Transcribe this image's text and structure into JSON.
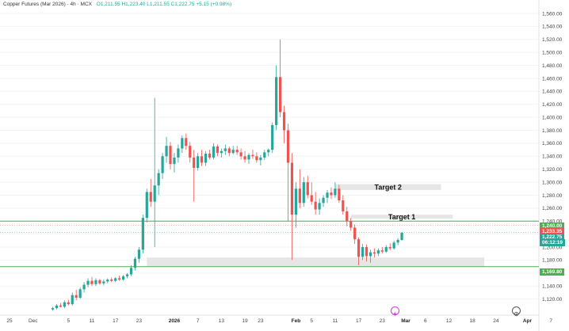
{
  "header": {
    "symbol": "Copper Futures (Mar 2026) · 4h · MCX",
    "quote": "O1,211.55  H1,223.40  L1,211.55  C1,222.75  +5.15 (+0.98%)"
  },
  "colors": {
    "up": "#26a69a",
    "down": "#ef5350",
    "level": "#4caf50",
    "zone": "#e6e6e6",
    "grid": "#f1f3f6"
  },
  "icons": {
    "flash": "lightning-icon",
    "alarm": "alarm-clock-icon"
  },
  "price_tags": [
    {
      "name": "resistance-tag",
      "text": "1,240.00",
      "value": 1240,
      "color": "#4caf50"
    },
    {
      "name": "prev-close-tag",
      "text": "1,233.35",
      "value": 1233.35,
      "color": "#ef5350"
    },
    {
      "name": "last-price-tag",
      "text": "1,222.75",
      "value": 1222.75,
      "color": "#26a69a"
    },
    {
      "name": "countdown-tag",
      "text": "06:12:19",
      "value": 1213.5,
      "color": "#26a69a"
    },
    {
      "name": "support-tag",
      "text": "1,169.80",
      "value": 1169.8,
      "color": "#4caf50"
    }
  ],
  "chart_data": {
    "type": "candlestick",
    "y_axis": {
      "range": [
        1100,
        1570
      ],
      "ticks": [
        1120,
        1140,
        1160,
        1180,
        1200,
        1220,
        1240,
        1260,
        1280,
        1300,
        1320,
        1340,
        1360,
        1380,
        1400,
        1420,
        1440,
        1460,
        1480,
        1500,
        1520,
        1540,
        1560
      ],
      "tick_labels": [
        "1,120.00",
        "1,140.00",
        "1,160.00",
        "1,180.00",
        "1,200.00",
        "1,220.00",
        "1,240.00",
        "1,260.00",
        "1,280.00",
        "1,300.00",
        "1,320.00",
        "1,340.00",
        "1,360.00",
        "1,380.00",
        "1,400.00",
        "1,420.00",
        "1,440.00",
        "1,460.00",
        "1,480.00",
        "1,500.00",
        "1,520.00",
        "1,540.00",
        "1,560.00"
      ]
    },
    "x_axis": {
      "labels": [
        {
          "t": "25",
          "d": -11,
          "bold": false
        },
        {
          "t": "Dec",
          "d": -5,
          "bold": false
        },
        {
          "t": "5",
          "d": 4,
          "bold": false
        },
        {
          "t": "11",
          "d": 10,
          "bold": false
        },
        {
          "t": "17",
          "d": 16,
          "bold": false
        },
        {
          "t": "23",
          "d": 22,
          "bold": false
        },
        {
          "t": "2026",
          "d": 31,
          "bold": true
        },
        {
          "t": "7",
          "d": 37,
          "bold": false
        },
        {
          "t": "13",
          "d": 43,
          "bold": false
        },
        {
          "t": "19",
          "d": 49,
          "bold": false
        },
        {
          "t": "23",
          "d": 53,
          "bold": false
        },
        {
          "t": "Feb",
          "d": 62,
          "bold": true
        },
        {
          "t": "5",
          "d": 66,
          "bold": false
        },
        {
          "t": "11",
          "d": 72,
          "bold": false
        },
        {
          "t": "17",
          "d": 78,
          "bold": false
        },
        {
          "t": "23",
          "d": 84,
          "bold": false
        },
        {
          "t": "Mar",
          "d": 90,
          "bold": true
        },
        {
          "t": "6",
          "d": 95,
          "bold": false
        },
        {
          "t": "12",
          "d": 101,
          "bold": false
        },
        {
          "t": "18",
          "d": 107,
          "bold": false
        },
        {
          "t": "24",
          "d": 113,
          "bold": false
        },
        {
          "t": "Apr",
          "d": 121,
          "bold": true
        },
        {
          "t": "7",
          "d": 127,
          "bold": false
        }
      ]
    },
    "levels": [
      {
        "name": "resistance-line",
        "value": 1240.0
      },
      {
        "name": "support-line",
        "value": 1169.8
      }
    ],
    "dotted_lines": [
      1233.35,
      1222.75
    ],
    "zones": [
      {
        "name": "target-2-zone",
        "label": "Target 2",
        "d_start": 72,
        "d_end": 99,
        "top": 1297,
        "bottom": 1288
      },
      {
        "name": "target-1-zone",
        "label": "Target 1",
        "d_start": 76,
        "d_end": 102,
        "top": 1250,
        "bottom": 1244
      },
      {
        "name": "support-zone",
        "label": "",
        "d_start": 24,
        "d_end": 110,
        "top": 1184,
        "bottom": 1170
      }
    ],
    "series": [
      {
        "d": 0,
        "o": 1104,
        "h": 1108,
        "l": 1102,
        "c": 1106
      },
      {
        "d": 1,
        "o": 1106,
        "h": 1112,
        "l": 1104,
        "c": 1110
      },
      {
        "d": 2,
        "o": 1110,
        "h": 1114,
        "l": 1107,
        "c": 1108
      },
      {
        "d": 3,
        "o": 1108,
        "h": 1118,
        "l": 1106,
        "c": 1115
      },
      {
        "d": 4,
        "o": 1115,
        "h": 1119,
        "l": 1110,
        "c": 1112
      },
      {
        "d": 5,
        "o": 1112,
        "h": 1130,
        "l": 1110,
        "c": 1126
      },
      {
        "d": 6,
        "o": 1126,
        "h": 1134,
        "l": 1118,
        "c": 1122
      },
      {
        "d": 7,
        "o": 1122,
        "h": 1138,
        "l": 1120,
        "c": 1135
      },
      {
        "d": 8,
        "o": 1135,
        "h": 1146,
        "l": 1130,
        "c": 1142
      },
      {
        "d": 9,
        "o": 1142,
        "h": 1152,
        "l": 1138,
        "c": 1148
      },
      {
        "d": 10,
        "o": 1148,
        "h": 1154,
        "l": 1140,
        "c": 1143
      },
      {
        "d": 11,
        "o": 1143,
        "h": 1152,
        "l": 1140,
        "c": 1149
      },
      {
        "d": 12,
        "o": 1149,
        "h": 1151,
        "l": 1142,
        "c": 1144
      },
      {
        "d": 13,
        "o": 1144,
        "h": 1150,
        "l": 1141,
        "c": 1147
      },
      {
        "d": 14,
        "o": 1147,
        "h": 1152,
        "l": 1144,
        "c": 1150
      },
      {
        "d": 15,
        "o": 1150,
        "h": 1153,
        "l": 1146,
        "c": 1148
      },
      {
        "d": 16,
        "o": 1148,
        "h": 1154,
        "l": 1146,
        "c": 1152
      },
      {
        "d": 17,
        "o": 1152,
        "h": 1156,
        "l": 1148,
        "c": 1150
      },
      {
        "d": 18,
        "o": 1150,
        "h": 1157,
        "l": 1148,
        "c": 1155
      },
      {
        "d": 19,
        "o": 1155,
        "h": 1160,
        "l": 1152,
        "c": 1158
      },
      {
        "d": 20,
        "o": 1158,
        "h": 1172,
        "l": 1155,
        "c": 1168
      },
      {
        "d": 21,
        "o": 1168,
        "h": 1185,
        "l": 1164,
        "c": 1182
      },
      {
        "d": 22,
        "o": 1182,
        "h": 1200,
        "l": 1176,
        "c": 1196
      },
      {
        "d": 23,
        "o": 1196,
        "h": 1250,
        "l": 1190,
        "c": 1245
      },
      {
        "d": 24,
        "o": 1245,
        "h": 1290,
        "l": 1238,
        "c": 1285
      },
      {
        "d": 25,
        "o": 1285,
        "h": 1305,
        "l": 1262,
        "c": 1270
      },
      {
        "d": 26,
        "o": 1270,
        "h": 1430,
        "l": 1200,
        "c": 1295
      },
      {
        "d": 27,
        "o": 1295,
        "h": 1320,
        "l": 1280,
        "c": 1314
      },
      {
        "d": 28,
        "o": 1314,
        "h": 1345,
        "l": 1305,
        "c": 1340
      },
      {
        "d": 29,
        "o": 1340,
        "h": 1370,
        "l": 1330,
        "c": 1356
      },
      {
        "d": 30,
        "o": 1356,
        "h": 1362,
        "l": 1320,
        "c": 1328
      },
      {
        "d": 31,
        "o": 1328,
        "h": 1345,
        "l": 1315,
        "c": 1338
      },
      {
        "d": 32,
        "o": 1338,
        "h": 1358,
        "l": 1330,
        "c": 1352
      },
      {
        "d": 33,
        "o": 1352,
        "h": 1372,
        "l": 1345,
        "c": 1368
      },
      {
        "d": 34,
        "o": 1368,
        "h": 1375,
        "l": 1350,
        "c": 1356
      },
      {
        "d": 35,
        "o": 1356,
        "h": 1362,
        "l": 1330,
        "c": 1338
      },
      {
        "d": 36,
        "o": 1338,
        "h": 1350,
        "l": 1270,
        "c": 1322
      },
      {
        "d": 37,
        "o": 1322,
        "h": 1345,
        "l": 1318,
        "c": 1340
      },
      {
        "d": 38,
        "o": 1340,
        "h": 1350,
        "l": 1325,
        "c": 1330
      },
      {
        "d": 39,
        "o": 1330,
        "h": 1348,
        "l": 1325,
        "c": 1344
      },
      {
        "d": 40,
        "o": 1344,
        "h": 1350,
        "l": 1335,
        "c": 1338
      },
      {
        "d": 41,
        "o": 1338,
        "h": 1360,
        "l": 1335,
        "c": 1355
      },
      {
        "d": 42,
        "o": 1355,
        "h": 1358,
        "l": 1340,
        "c": 1345
      },
      {
        "d": 43,
        "o": 1345,
        "h": 1352,
        "l": 1338,
        "c": 1348
      },
      {
        "d": 44,
        "o": 1348,
        "h": 1358,
        "l": 1342,
        "c": 1352
      },
      {
        "d": 45,
        "o": 1352,
        "h": 1355,
        "l": 1340,
        "c": 1345
      },
      {
        "d": 46,
        "o": 1345,
        "h": 1356,
        "l": 1343,
        "c": 1350
      },
      {
        "d": 47,
        "o": 1350,
        "h": 1356,
        "l": 1342,
        "c": 1346
      },
      {
        "d": 48,
        "o": 1346,
        "h": 1352,
        "l": 1335,
        "c": 1340
      },
      {
        "d": 49,
        "o": 1340,
        "h": 1348,
        "l": 1330,
        "c": 1335
      },
      {
        "d": 50,
        "o": 1335,
        "h": 1345,
        "l": 1328,
        "c": 1342
      },
      {
        "d": 51,
        "o": 1342,
        "h": 1350,
        "l": 1336,
        "c": 1340
      },
      {
        "d": 52,
        "o": 1340,
        "h": 1346,
        "l": 1330,
        "c": 1334
      },
      {
        "d": 53,
        "o": 1334,
        "h": 1342,
        "l": 1326,
        "c": 1338
      },
      {
        "d": 54,
        "o": 1338,
        "h": 1350,
        "l": 1334,
        "c": 1346
      },
      {
        "d": 55,
        "o": 1346,
        "h": 1352,
        "l": 1340,
        "c": 1350
      },
      {
        "d": 56,
        "o": 1350,
        "h": 1392,
        "l": 1345,
        "c": 1388
      },
      {
        "d": 57,
        "o": 1388,
        "h": 1480,
        "l": 1380,
        "c": 1462
      },
      {
        "d": 58,
        "o": 1462,
        "h": 1520,
        "l": 1400,
        "c": 1408
      },
      {
        "d": 59,
        "o": 1408,
        "h": 1418,
        "l": 1360,
        "c": 1380
      },
      {
        "d": 60,
        "o": 1380,
        "h": 1390,
        "l": 1240,
        "c": 1330
      },
      {
        "d": 61,
        "o": 1330,
        "h": 1345,
        "l": 1180,
        "c": 1250
      },
      {
        "d": 62,
        "o": 1250,
        "h": 1300,
        "l": 1230,
        "c": 1290
      },
      {
        "d": 63,
        "o": 1290,
        "h": 1320,
        "l": 1260,
        "c": 1268
      },
      {
        "d": 64,
        "o": 1268,
        "h": 1308,
        "l": 1262,
        "c": 1300
      },
      {
        "d": 65,
        "o": 1300,
        "h": 1310,
        "l": 1275,
        "c": 1280
      },
      {
        "d": 66,
        "o": 1280,
        "h": 1300,
        "l": 1265,
        "c": 1270
      },
      {
        "d": 67,
        "o": 1270,
        "h": 1285,
        "l": 1250,
        "c": 1258
      },
      {
        "d": 68,
        "o": 1258,
        "h": 1275,
        "l": 1250,
        "c": 1268
      },
      {
        "d": 69,
        "o": 1268,
        "h": 1280,
        "l": 1262,
        "c": 1276
      },
      {
        "d": 70,
        "o": 1276,
        "h": 1288,
        "l": 1268,
        "c": 1284
      },
      {
        "d": 71,
        "o": 1284,
        "h": 1292,
        "l": 1274,
        "c": 1280
      },
      {
        "d": 72,
        "o": 1280,
        "h": 1300,
        "l": 1276,
        "c": 1290
      },
      {
        "d": 73,
        "o": 1290,
        "h": 1296,
        "l": 1268,
        "c": 1272
      },
      {
        "d": 74,
        "o": 1272,
        "h": 1280,
        "l": 1250,
        "c": 1255
      },
      {
        "d": 75,
        "o": 1255,
        "h": 1262,
        "l": 1232,
        "c": 1240
      },
      {
        "d": 76,
        "o": 1240,
        "h": 1245,
        "l": 1225,
        "c": 1230
      },
      {
        "d": 77,
        "o": 1230,
        "h": 1235,
        "l": 1205,
        "c": 1212
      },
      {
        "d": 78,
        "o": 1212,
        "h": 1215,
        "l": 1172,
        "c": 1185
      },
      {
        "d": 79,
        "o": 1185,
        "h": 1205,
        "l": 1180,
        "c": 1200
      },
      {
        "d": 80,
        "o": 1200,
        "h": 1204,
        "l": 1178,
        "c": 1186
      },
      {
        "d": 81,
        "o": 1186,
        "h": 1196,
        "l": 1176,
        "c": 1192
      },
      {
        "d": 82,
        "o": 1192,
        "h": 1198,
        "l": 1184,
        "c": 1190
      },
      {
        "d": 83,
        "o": 1190,
        "h": 1198,
        "l": 1186,
        "c": 1195
      },
      {
        "d": 84,
        "o": 1195,
        "h": 1200,
        "l": 1190,
        "c": 1193
      },
      {
        "d": 85,
        "o": 1193,
        "h": 1203,
        "l": 1191,
        "c": 1200
      },
      {
        "d": 86,
        "o": 1200,
        "h": 1206,
        "l": 1195,
        "c": 1198
      },
      {
        "d": 87,
        "o": 1198,
        "h": 1210,
        "l": 1196,
        "c": 1207
      },
      {
        "d": 88,
        "o": 1207,
        "h": 1214,
        "l": 1203,
        "c": 1211
      },
      {
        "d": 89,
        "o": 1211,
        "h": 1223,
        "l": 1210,
        "c": 1222
      }
    ]
  }
}
